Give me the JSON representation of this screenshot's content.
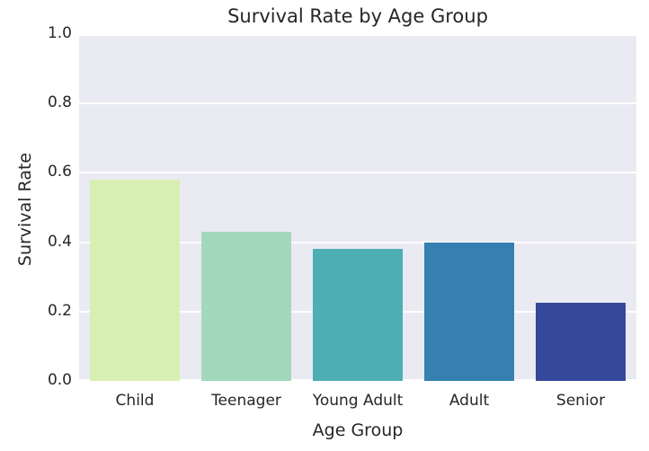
{
  "chart_data": {
    "type": "bar",
    "title": "Survival Rate by Age Group",
    "xlabel": "Age Group",
    "ylabel": "Survival Rate",
    "categories": [
      "Child",
      "Teenager",
      "Young Adult",
      "Adult",
      "Senior"
    ],
    "values": [
      0.58,
      0.43,
      0.38,
      0.4,
      0.225
    ],
    "bar_colors": [
      "#d8efb4",
      "#a2d9bd",
      "#4daeb4",
      "#3580b1",
      "#36489a"
    ],
    "ylim": [
      0.0,
      1.0
    ],
    "yticks": [
      "0.0",
      "0.2",
      "0.4",
      "0.6",
      "0.8",
      "1.0"
    ],
    "grid": "horizontal",
    "gridline_color": "#ffffff",
    "plot_background": "#eaeaf2",
    "figure_background": "#ffffff",
    "legend": "none"
  }
}
